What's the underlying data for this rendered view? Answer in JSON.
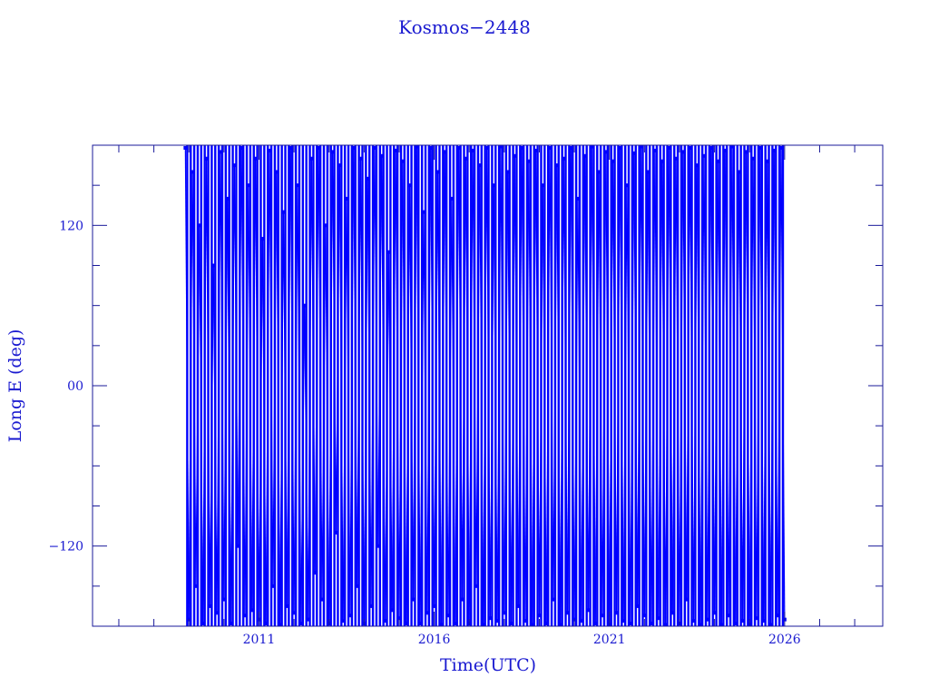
{
  "chart_data": {
    "type": "line",
    "title": "Kosmos−2448",
    "xlabel": "Time(UTC)",
    "ylabel": "Long E (deg)",
    "xlim": [
      2006.25,
      2028.8
    ],
    "ylim": [
      -180,
      180
    ],
    "x_tick_labels": [
      "2011",
      "2016",
      "2021",
      "2026"
    ],
    "x_ticks": [
      2011,
      2016,
      2021,
      2026
    ],
    "y_tick_labels": [
      "120",
      "00",
      "−120"
    ],
    "y_ticks": [
      120,
      0,
      -120
    ],
    "y_minor_step": 30,
    "x_minor_step": 1,
    "grid": false,
    "colors": {
      "data": "#0000ff",
      "axes": "#1a1a9a",
      "text": "#1a1ad0"
    },
    "series": [
      {
        "dates": [
          2008.9,
          2009.0,
          2009.1,
          2009.2,
          2009.3,
          2009.4,
          2009.5,
          2009.6,
          2009.7,
          2009.8,
          2009.9,
          2010.0,
          2010.1,
          2010.2,
          2010.3,
          2010.4,
          2010.5,
          2010.6,
          2010.7,
          2010.8,
          2010.9,
          2011.0,
          2011.1,
          2011.2,
          2011.3,
          2011.4,
          2011.5,
          2011.6,
          2011.7,
          2011.8,
          2011.9,
          2012.0,
          2012.1,
          2012.2,
          2012.3,
          2012.4,
          2012.5,
          2012.6,
          2012.7,
          2012.8,
          2012.9,
          2013.0,
          2013.1,
          2013.2,
          2013.3,
          2013.4,
          2013.5,
          2013.6,
          2013.7,
          2013.8,
          2013.9,
          2014.0,
          2014.1,
          2014.2,
          2014.3,
          2014.4,
          2014.5,
          2014.6,
          2014.7,
          2014.8,
          2014.9,
          2015.0,
          2015.1,
          2015.2,
          2015.3,
          2015.4,
          2015.5,
          2015.6,
          2015.7,
          2015.8,
          2015.9,
          2016.0,
          2016.1,
          2016.2,
          2016.3,
          2016.4,
          2016.5,
          2016.6,
          2016.7,
          2016.8,
          2016.9,
          2017.0,
          2017.1,
          2017.2,
          2017.3,
          2017.4,
          2017.5,
          2017.6,
          2017.7,
          2017.8,
          2017.9,
          2018.0,
          2018.1,
          2018.2,
          2018.3,
          2018.4,
          2018.5,
          2018.6,
          2018.7,
          2018.8,
          2018.9,
          2019.0,
          2019.1,
          2019.2,
          2019.3,
          2019.4,
          2019.5,
          2019.6,
          2019.7,
          2019.8,
          2019.9,
          2020.0,
          2020.1,
          2020.2,
          2020.3,
          2020.4,
          2020.5,
          2020.6,
          2020.7,
          2020.8,
          2020.9,
          2021.0,
          2021.1,
          2021.2,
          2021.3,
          2021.4,
          2021.5,
          2021.6,
          2021.7,
          2021.8,
          2021.9,
          2022.0,
          2022.1,
          2022.2,
          2022.3,
          2022.4,
          2022.5,
          2022.6,
          2022.7,
          2022.8,
          2022.9,
          2023.0,
          2023.1,
          2023.2,
          2023.3,
          2023.4,
          2023.5,
          2023.6,
          2023.7,
          2023.8,
          2023.9,
          2024.0,
          2024.1,
          2024.2,
          2024.3,
          2024.4,
          2024.5,
          2024.6,
          2024.7,
          2024.8,
          2024.9,
          2025.0,
          2025.1,
          2025.2,
          2025.3,
          2025.4,
          2025.5,
          2025.6,
          2025.7,
          2025.8,
          2025.9,
          2026.0
        ],
        "longitudes": [
          178,
          -175,
          160,
          -150,
          120,
          -178,
          170,
          -165,
          90,
          -170,
          175,
          -160,
          140,
          -178,
          165,
          -120,
          178,
          -172,
          150,
          -168,
          170,
          -175,
          110,
          -178,
          176,
          -150,
          160,
          -179,
          130,
          -165,
          178,
          -170,
          150,
          -178,
          60,
          -175,
          170,
          -140,
          178,
          -160,
          120,
          -178,
          175,
          -110,
          165,
          -176,
          140,
          -172,
          178,
          -150,
          170,
          -178,
          155,
          -165,
          178,
          -120,
          172,
          -176,
          100,
          -168,
          176,
          -174,
          168,
          -178,
          150,
          -160,
          179,
          -178,
          130,
          -170,
          178,
          -165,
          160,
          -179,
          175,
          -172,
          140,
          -178,
          178,
          -160,
          170,
          -178,
          176,
          -150,
          165,
          -179,
          178,
          -174,
          150,
          -176,
          179,
          -170,
          160,
          -178,
          172,
          -165,
          178,
          -176,
          168,
          -179,
          176,
          -172,
          150,
          -178,
          178,
          -160,
          165,
          -179,
          170,
          -170,
          178,
          -175,
          140,
          -176,
          172,
          -168,
          179,
          -178,
          160,
          -172,
          175,
          -179,
          168,
          -170,
          178,
          -176,
          150,
          -178,
          174,
          -165,
          179,
          -172,
          160,
          -178,
          176,
          -174,
          168,
          -179,
          178,
          -170,
          170,
          -178,
          175,
          -160,
          178,
          -176,
          165,
          -179,
          172,
          -175,
          178,
          -170,
          168,
          -179,
          176,
          -172,
          179,
          -178,
          160,
          -176,
          175,
          -179,
          170,
          -174,
          178,
          -176,
          168,
          -179,
          176,
          -172,
          178,
          -175
        ]
      }
    ]
  }
}
